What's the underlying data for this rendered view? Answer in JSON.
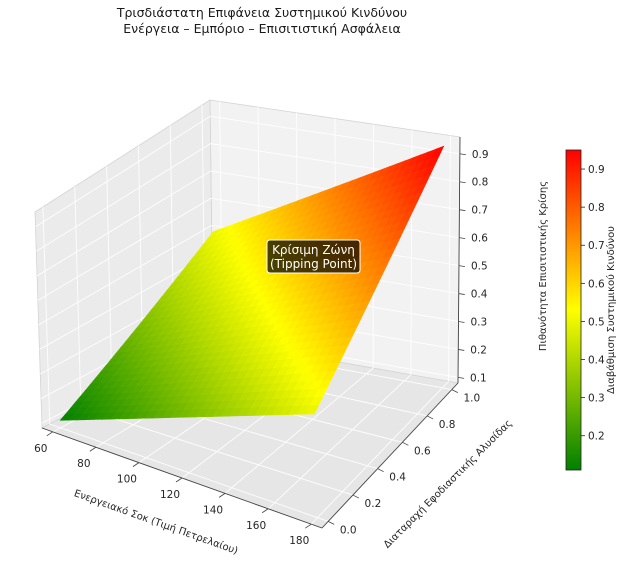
{
  "chart_data": {
    "type": "surface3d",
    "title_lines": [
      "Τρισδιάστατη Επιφάνεια Συστημικού Κινδύνου",
      "Ενέργεια – Εμπόριο – Επισιτιστική Ασφάλεια"
    ],
    "xlabel": "Ενεργειακό Σοκ (Τιμή Πετρελαίου)",
    "ylabel": "Διαταραχή Εφοδιαστικής Αλυσίδας",
    "zlabel": "Πιθανότητα Επισιτιστικής Κρίσης",
    "x_ticks": [
      60,
      80,
      100,
      120,
      140,
      160,
      180
    ],
    "y_ticks": [
      "0.0",
      "0.2",
      "0.4",
      "0.6",
      "0.8",
      "1.0"
    ],
    "z_ticks": [
      "0.1",
      "0.2",
      "0.3",
      "0.4",
      "0.5",
      "0.6",
      "0.7",
      "0.8",
      "0.9"
    ],
    "xlim": [
      55,
      185
    ],
    "ylim": [
      -0.05,
      1.05
    ],
    "zlim": [
      0.08,
      0.96
    ],
    "x_range": [
      60,
      180
    ],
    "y_range": [
      0,
      1
    ],
    "corner_values": {
      "x_min_y_min": 0.11,
      "x_max_y_min": 0.5,
      "x_min_y_max": 0.5,
      "x_max_y_max": 0.95
    },
    "colormap": [
      "#008000",
      "#ffff00",
      "#ff0000"
    ],
    "annotation": {
      "text_lines": [
        "Κρίσιμη Ζώνη",
        "(Tipping Point)"
      ],
      "bg_color": "#000000",
      "text_color": "#ffffff"
    },
    "colorbar": {
      "label": "Διαβάθμιση Συστημικού Κινδύνου",
      "ticks": [
        "0.2",
        "0.3",
        "0.4",
        "0.5",
        "0.6",
        "0.7",
        "0.8",
        "0.9"
      ],
      "range": [
        0.11,
        0.95
      ]
    },
    "grid": true
  }
}
